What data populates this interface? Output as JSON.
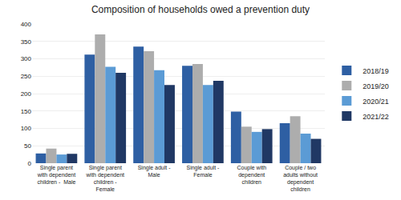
{
  "chart_data": {
    "type": "bar",
    "title": "Composition of households owed a prevention duty",
    "categories": [
      "Single parent\nwith dependent\nchildren -  Male",
      "Single parent\nwith dependent\nchildren -\nFemale",
      "Single adult -\nMale",
      "Single adult -\nFemale",
      "Couple with\ndependent\nchildren",
      "Couple / two\nadults without\ndependent\nchildren"
    ],
    "series": [
      {
        "name": "2018/19",
        "color": "#2E5FA3",
        "values": [
          28,
          312,
          335,
          280,
          148,
          115
        ]
      },
      {
        "name": "2019/20",
        "color": "#ADADAD",
        "values": [
          42,
          370,
          322,
          285,
          105,
          135
        ]
      },
      {
        "name": "2020/21",
        "color": "#5B9BD5",
        "values": [
          25,
          277,
          267,
          225,
          90,
          85
        ]
      },
      {
        "name": "2021/22",
        "color": "#203864",
        "values": [
          27,
          260,
          225,
          237,
          98,
          70
        ]
      }
    ],
    "ylim": [
      0,
      400
    ],
    "yticks": [
      0,
      50,
      100,
      150,
      200,
      250,
      300,
      350,
      400
    ],
    "grid": true,
    "legend": "right"
  }
}
